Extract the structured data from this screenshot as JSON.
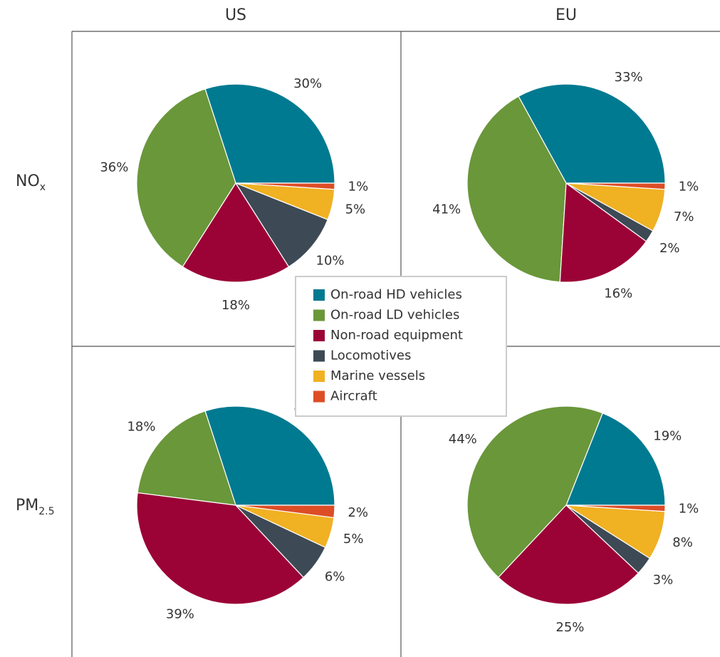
{
  "column_labels": [
    "US",
    "EU"
  ],
  "row_labels": [
    {
      "text": "NO",
      "subscript": "x"
    },
    {
      "text": "PM",
      "subscript": "2.5"
    }
  ],
  "categories": [
    "On-road HD vehicles",
    "On-road LD vehicles",
    "Non-road equipment",
    "Locomotives",
    "Marine vessels",
    "Aircraft"
  ],
  "colors": [
    "#007a91",
    "#6a973a",
    "#9b0236",
    "#3d4a55",
    "#f0b123",
    "#dd4d26"
  ],
  "chart_data": [
    {
      "type": "pie",
      "values": [
        30,
        36,
        18,
        10,
        5,
        1
      ],
      "value_labels": [
        "30%",
        "36%",
        "18%",
        "10%",
        "5%",
        "1%"
      ]
    },
    {
      "type": "pie",
      "values": [
        33,
        41,
        16,
        2,
        7,
        1
      ],
      "value_labels": [
        "33%",
        "41%",
        "16%",
        "2%",
        "7%",
        "1%"
      ]
    },
    {
      "type": "pie",
      "values": [
        30,
        18,
        39,
        6,
        5,
        2
      ],
      "value_labels": [
        "30%",
        "18%",
        "39%",
        "6%",
        "5%",
        "2%"
      ]
    },
    {
      "type": "pie",
      "values": [
        19,
        44,
        25,
        3,
        8,
        1
      ],
      "value_labels": [
        "19%",
        "44%",
        "25%",
        "3%",
        "8%",
        "1%"
      ]
    }
  ]
}
